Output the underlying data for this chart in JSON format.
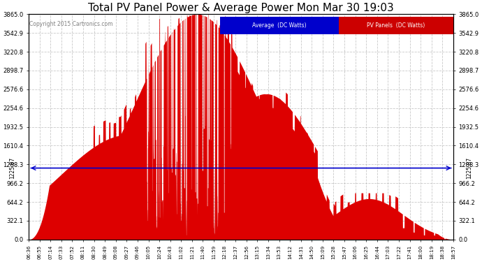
{
  "title": "Total PV Panel Power & Average Power Mon Mar 30 19:03",
  "copyright": "Copyright 2015 Cartronics.com",
  "background_color": "#ffffff",
  "plot_bg_color": "#ffffff",
  "grid_color": "#bbbbbb",
  "avg_line_value": 1225.87,
  "avg_line_color": "#0000cc",
  "pv_fill_color": "#dd0000",
  "ymax": 3865.0,
  "yticks": [
    0.0,
    322.1,
    644.2,
    966.2,
    1288.3,
    1610.4,
    1932.5,
    2254.6,
    2576.6,
    2898.7,
    3220.8,
    3542.9,
    3865.0
  ],
  "ytick_labels": [
    "0.0",
    "322.1",
    "644.2",
    "966.2",
    "1288.3",
    "1610.4",
    "1932.5",
    "2254.6",
    "2576.6",
    "2898.7",
    "3220.8",
    "3542.9",
    "3865.0"
  ],
  "xtick_labels": [
    "06:36",
    "06:55",
    "07:14",
    "07:33",
    "07:52",
    "08:11",
    "08:30",
    "08:49",
    "09:08",
    "09:27",
    "09:46",
    "10:05",
    "10:24",
    "10:43",
    "11:02",
    "11:21",
    "11:40",
    "11:59",
    "12:18",
    "12:37",
    "12:56",
    "13:15",
    "13:34",
    "13:53",
    "14:12",
    "14:31",
    "14:50",
    "15:09",
    "15:28",
    "15:47",
    "16:06",
    "16:25",
    "16:44",
    "17:03",
    "17:22",
    "17:41",
    "18:00",
    "18:19",
    "18:38",
    "18:57"
  ],
  "legend_avg_label": "Average  (DC Watts)",
  "legend_pv_label": "PV Panels  (DC Watts)",
  "legend_avg_bg": "#0000cc",
  "legend_pv_bg": "#cc0000",
  "title_fontsize": 11,
  "tick_fontsize": 6,
  "xtick_fontsize": 5
}
